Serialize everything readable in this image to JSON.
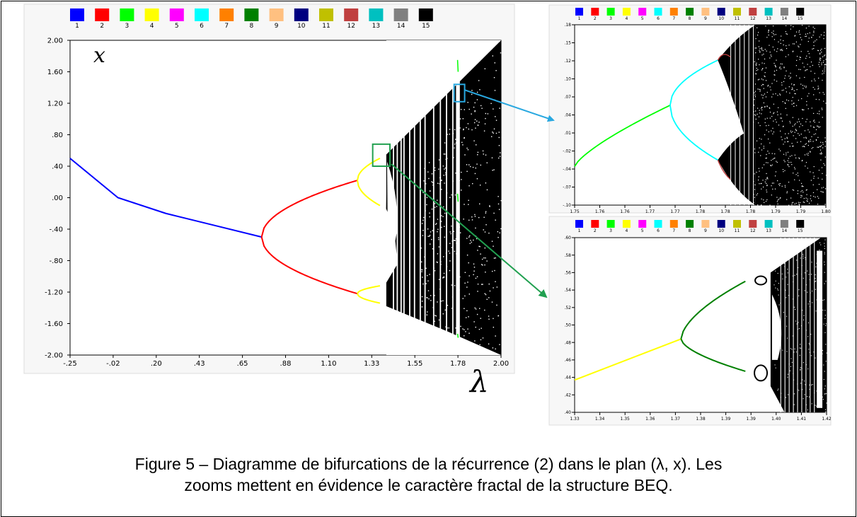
{
  "figure": {
    "caption_line1": "Figure 5 – Diagramme de bifurcations de la récurrence (2) dans le plan (λ, x). Les",
    "caption_line2": "zooms mettent en évidence le caractère fractal de la structure BEQ."
  },
  "colors": {
    "palette": [
      "#0000ff",
      "#ff0000",
      "#00ff00",
      "#ffff00",
      "#ff00ff",
      "#00ffff",
      "#ff8000",
      "#008000",
      "#ffc080",
      "#000080",
      "#c0c000",
      "#c04040",
      "#00c0c0",
      "#808080",
      "#000000"
    ],
    "arrow_blue": "#29a8e0",
    "arrow_green": "#21a050",
    "box_blue": "#29a8e0",
    "box_green": "#21a050"
  },
  "chart_data": [
    {
      "type": "scatter",
      "name": "main",
      "legend_labels": [
        "1",
        "2",
        "3",
        "4",
        "5",
        "6",
        "7",
        "8",
        "9",
        "10",
        "11",
        "12",
        "13",
        "14",
        "15"
      ],
      "xlabel": "λ",
      "ylabel": "x",
      "xlim": [
        -0.25,
        2.0
      ],
      "ylim": [
        -2.0,
        2.0
      ],
      "xtick_labels": [
        "-.25",
        "-.02",
        ".20",
        ".43",
        ".65",
        ".88",
        "1.10",
        "1.33",
        "1.55",
        "1.78",
        "2.00"
      ],
      "ytick_labels": [
        "2.00",
        "1.60",
        "1.20",
        ".80",
        ".40",
        ".00",
        "-.40",
        "-.80",
        "-1.20",
        "-1.60",
        "-2.00"
      ],
      "period1_points": [
        [
          -0.25,
          0.5
        ],
        [
          0.0,
          0.0
        ],
        [
          0.25,
          -0.2
        ],
        [
          0.5,
          -0.35
        ],
        [
          0.75,
          -0.5
        ]
      ],
      "bifurcations": [
        0.75,
        1.25,
        1.368
      ],
      "chaos_onset": 1.401
    },
    {
      "type": "scatter",
      "name": "zoom-blue",
      "legend_labels": [
        "1",
        "2",
        "3",
        "4",
        "5",
        "6",
        "7",
        "8",
        "9",
        "10",
        "11",
        "12",
        "13",
        "14",
        "15"
      ],
      "xlim": [
        1.75,
        1.8
      ],
      "ylim": [
        -0.1,
        0.18
      ],
      "xtick_labels": [
        "1.75",
        "1.76",
        "1.76",
        "1.77",
        "1.77",
        "1.78",
        "1.78",
        "1.78",
        "1.79",
        "1.79",
        "1.80"
      ],
      "ytick_labels": [
        ".18",
        ".15",
        ".12",
        ".10",
        ".07",
        ".04",
        ".01",
        "-.02",
        "-.04",
        "-.07",
        "-.10"
      ]
    },
    {
      "type": "scatter",
      "name": "zoom-green",
      "legend_labels": [
        "1",
        "2",
        "3",
        "4",
        "5",
        "6",
        "7",
        "8",
        "9",
        "10",
        "11",
        "12",
        "13",
        "14",
        "15"
      ],
      "xlim": [
        1.33,
        1.42
      ],
      "ylim": [
        0.4,
        0.6
      ],
      "xtick_labels": [
        "1.33",
        "1.34",
        "1.35",
        "1.36",
        "1.37",
        "1.38",
        "1.39",
        "1.39",
        "1.40",
        "1.41",
        "1.42"
      ],
      "ytick_labels": [
        ".60",
        ".58",
        ".56",
        ".54",
        ".52",
        ".50",
        ".48",
        ".46",
        ".44",
        ".42",
        ".40"
      ]
    }
  ]
}
